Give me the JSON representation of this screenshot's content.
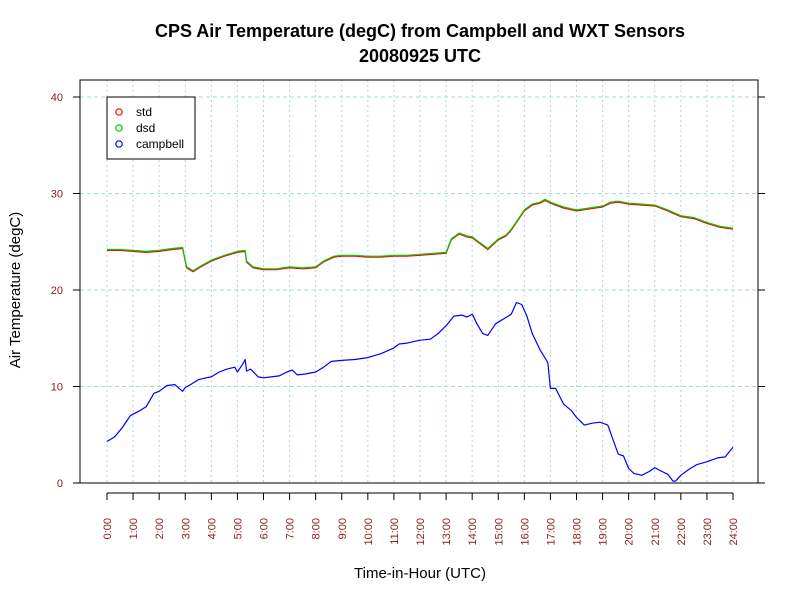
{
  "chart_data": {
    "type": "line",
    "title": "CPS Air Temperature (degC) from Campbell and WXT Sensors",
    "subtitle": "20080925  UTC",
    "xlabel": "Time-in-Hour (UTC)",
    "ylabel": "Air Temperature (degC)",
    "xlim": [
      0,
      24
    ],
    "ylim": [
      0,
      40
    ],
    "x_ticks": [
      "0:00",
      "1:00",
      "2:00",
      "3:00",
      "4:00",
      "5:00",
      "6:00",
      "7:00",
      "8:00",
      "9:00",
      "10:00",
      "11:00",
      "12:00",
      "13:00",
      "14:00",
      "15:00",
      "16:00",
      "17:00",
      "18:00",
      "19:00",
      "20:00",
      "21:00",
      "22:00",
      "23:00",
      "24:00"
    ],
    "y_ticks": [
      "0",
      "10",
      "20",
      "30",
      "40"
    ],
    "grid": true,
    "legend": "top-left",
    "series": [
      {
        "name": "std",
        "color": "#ff0000",
        "x": [
          0,
          0.5,
          1,
          1.5,
          2,
          2.5,
          2.9,
          3.05,
          3.3,
          3.6,
          4,
          4.5,
          5,
          5.3,
          5.35,
          5.6,
          6,
          6.5,
          7,
          7.5,
          8,
          8.3,
          8.7,
          9,
          9.5,
          10,
          10.5,
          11,
          11.5,
          12,
          12.5,
          13,
          13.2,
          13.5,
          13.8,
          14,
          14.3,
          14.6,
          15,
          15.3,
          15.5,
          15.8,
          16,
          16.3,
          16.6,
          16.8,
          17,
          17.5,
          18,
          18.5,
          19,
          19.3,
          19.6,
          20,
          20.5,
          21,
          21.5,
          22,
          22.5,
          23,
          23.5,
          24
        ],
        "y": [
          24.1,
          24.1,
          24.0,
          23.9,
          24.0,
          24.2,
          24.3,
          22.3,
          21.9,
          22.4,
          23.0,
          23.5,
          23.9,
          24.0,
          22.9,
          22.3,
          22.1,
          22.1,
          22.3,
          22.2,
          22.3,
          22.9,
          23.4,
          23.5,
          23.5,
          23.4,
          23.4,
          23.5,
          23.5,
          23.6,
          23.7,
          23.8,
          25.2,
          25.8,
          25.5,
          25.4,
          24.8,
          24.2,
          25.2,
          25.6,
          26.2,
          27.4,
          28.2,
          28.8,
          29.0,
          29.3,
          29.0,
          28.5,
          28.2,
          28.4,
          28.6,
          29.0,
          29.1,
          28.9,
          28.8,
          28.7,
          28.2,
          27.6,
          27.4,
          26.9,
          26.5,
          26.3
        ]
      },
      {
        "name": "dsd",
        "color": "#00cc00",
        "x": [
          0,
          0.5,
          1,
          1.5,
          2,
          2.5,
          2.9,
          3.05,
          3.3,
          3.6,
          4,
          4.5,
          5,
          5.3,
          5.35,
          5.6,
          6,
          6.5,
          7,
          7.5,
          8,
          8.3,
          8.7,
          9,
          9.5,
          10,
          10.5,
          11,
          11.5,
          12,
          12.5,
          13,
          13.2,
          13.5,
          13.8,
          14,
          14.3,
          14.6,
          15,
          15.3,
          15.5,
          15.8,
          16,
          16.3,
          16.6,
          16.8,
          17,
          17.5,
          18,
          18.5,
          19,
          19.3,
          19.6,
          20,
          20.5,
          21,
          21.5,
          22,
          22.5,
          23,
          23.5,
          24
        ],
        "y": [
          24.2,
          24.2,
          24.1,
          24.0,
          24.1,
          24.3,
          24.4,
          22.4,
          22.0,
          22.5,
          23.1,
          23.6,
          24.0,
          24.1,
          23.0,
          22.4,
          22.2,
          22.2,
          22.4,
          22.3,
          22.4,
          23.0,
          23.5,
          23.6,
          23.6,
          23.5,
          23.5,
          23.6,
          23.6,
          23.7,
          23.8,
          23.9,
          25.3,
          25.9,
          25.6,
          25.5,
          24.9,
          24.3,
          25.3,
          25.7,
          26.3,
          27.5,
          28.3,
          28.9,
          29.1,
          29.4,
          29.1,
          28.6,
          28.3,
          28.5,
          28.7,
          29.1,
          29.2,
          29.0,
          28.9,
          28.8,
          28.3,
          27.7,
          27.5,
          27.0,
          26.6,
          26.4
        ]
      },
      {
        "name": "campbell",
        "color": "#0000ff",
        "x": [
          0,
          0.3,
          0.6,
          0.9,
          1.2,
          1.5,
          1.8,
          2.0,
          2.3,
          2.6,
          2.9,
          3.0,
          3.2,
          3.5,
          3.8,
          4.0,
          4.3,
          4.6,
          4.9,
          5.0,
          5.2,
          5.3,
          5.35,
          5.5,
          5.8,
          6.0,
          6.3,
          6.6,
          6.9,
          7.1,
          7.3,
          7.6,
          8.0,
          8.3,
          8.6,
          9.0,
          9.5,
          10.0,
          10.5,
          11.0,
          11.2,
          11.5,
          12.0,
          12.4,
          12.7,
          13.0,
          13.3,
          13.6,
          13.8,
          14.0,
          14.2,
          14.4,
          14.6,
          14.9,
          15.2,
          15.5,
          15.7,
          15.9,
          16.1,
          16.3,
          16.6,
          16.9,
          17.0,
          17.2,
          17.5,
          17.8,
          18.0,
          18.3,
          18.6,
          18.9,
          19.2,
          19.4,
          19.6,
          19.8,
          20.0,
          20.2,
          20.5,
          20.8,
          21.0,
          21.2,
          21.5,
          21.7,
          21.8,
          22.0,
          22.3,
          22.6,
          23.0,
          23.4,
          23.7,
          24.0
        ],
        "y": [
          4.3,
          4.8,
          5.8,
          7.0,
          7.4,
          7.9,
          9.3,
          9.5,
          10.1,
          10.2,
          9.5,
          9.9,
          10.2,
          10.7,
          10.9,
          11.0,
          11.5,
          11.8,
          12.0,
          11.5,
          12.3,
          12.8,
          11.6,
          11.8,
          11.0,
          10.9,
          11.0,
          11.1,
          11.5,
          11.7,
          11.2,
          11.3,
          11.5,
          12.0,
          12.6,
          12.7,
          12.8,
          13.0,
          13.4,
          14.0,
          14.4,
          14.5,
          14.8,
          14.9,
          15.5,
          16.3,
          17.3,
          17.4,
          17.2,
          17.5,
          16.4,
          15.5,
          15.3,
          16.5,
          17.0,
          17.5,
          18.7,
          18.5,
          17.3,
          15.5,
          13.8,
          12.5,
          9.8,
          9.8,
          8.2,
          7.5,
          6.8,
          6.0,
          6.2,
          6.3,
          6.0,
          4.5,
          3.0,
          2.8,
          1.5,
          1.0,
          0.8,
          1.2,
          1.6,
          1.3,
          0.9,
          0.2,
          0.2,
          0.8,
          1.4,
          1.9,
          2.2,
          2.6,
          2.7,
          3.7
        ]
      }
    ]
  }
}
